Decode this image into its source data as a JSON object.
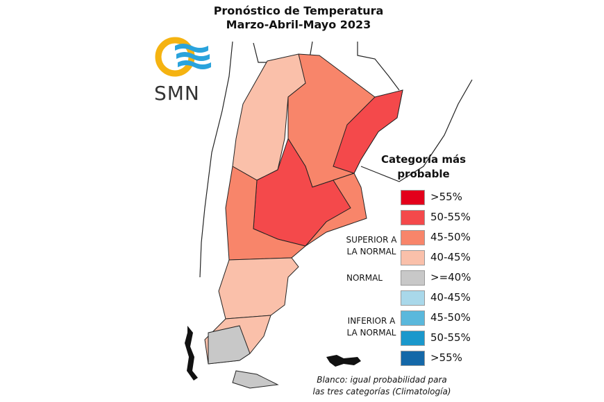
{
  "title": {
    "line1": "Pronóstico de Temperatura",
    "line2": "Marzo-Abril-Mayo 2023"
  },
  "logo": {
    "text": "SMN",
    "colors": {
      "ring": "#f5b311",
      "waves": "#2aa3dc"
    }
  },
  "legend": {
    "title": "Categoría más probable",
    "groups": {
      "superior": "SUPERIOR A\nLA NORMAL",
      "normal": "NORMAL",
      "inferior": "INFERIOR A\nLA NORMAL"
    },
    "items": [
      {
        "label": ">55%",
        "color": "#e3001b"
      },
      {
        "label": "50-55%",
        "color": "#f4494b"
      },
      {
        "label": "45-50%",
        "color": "#f8856a"
      },
      {
        "label": "40-45%",
        "color": "#fac0aa"
      },
      {
        "label": ">=40%",
        "color": "#c8c8c8"
      },
      {
        "label": "40-45%",
        "color": "#a9d8ea"
      },
      {
        "label": "45-50%",
        "color": "#5ab8dc"
      },
      {
        "label": "50-55%",
        "color": "#1a98cc"
      },
      {
        "label": ">55%",
        "color": "#1468a8"
      }
    ]
  },
  "note": {
    "line1": "Blanco: igual probabilidad para",
    "line2": "las tres categorías (Climatología)"
  }
}
